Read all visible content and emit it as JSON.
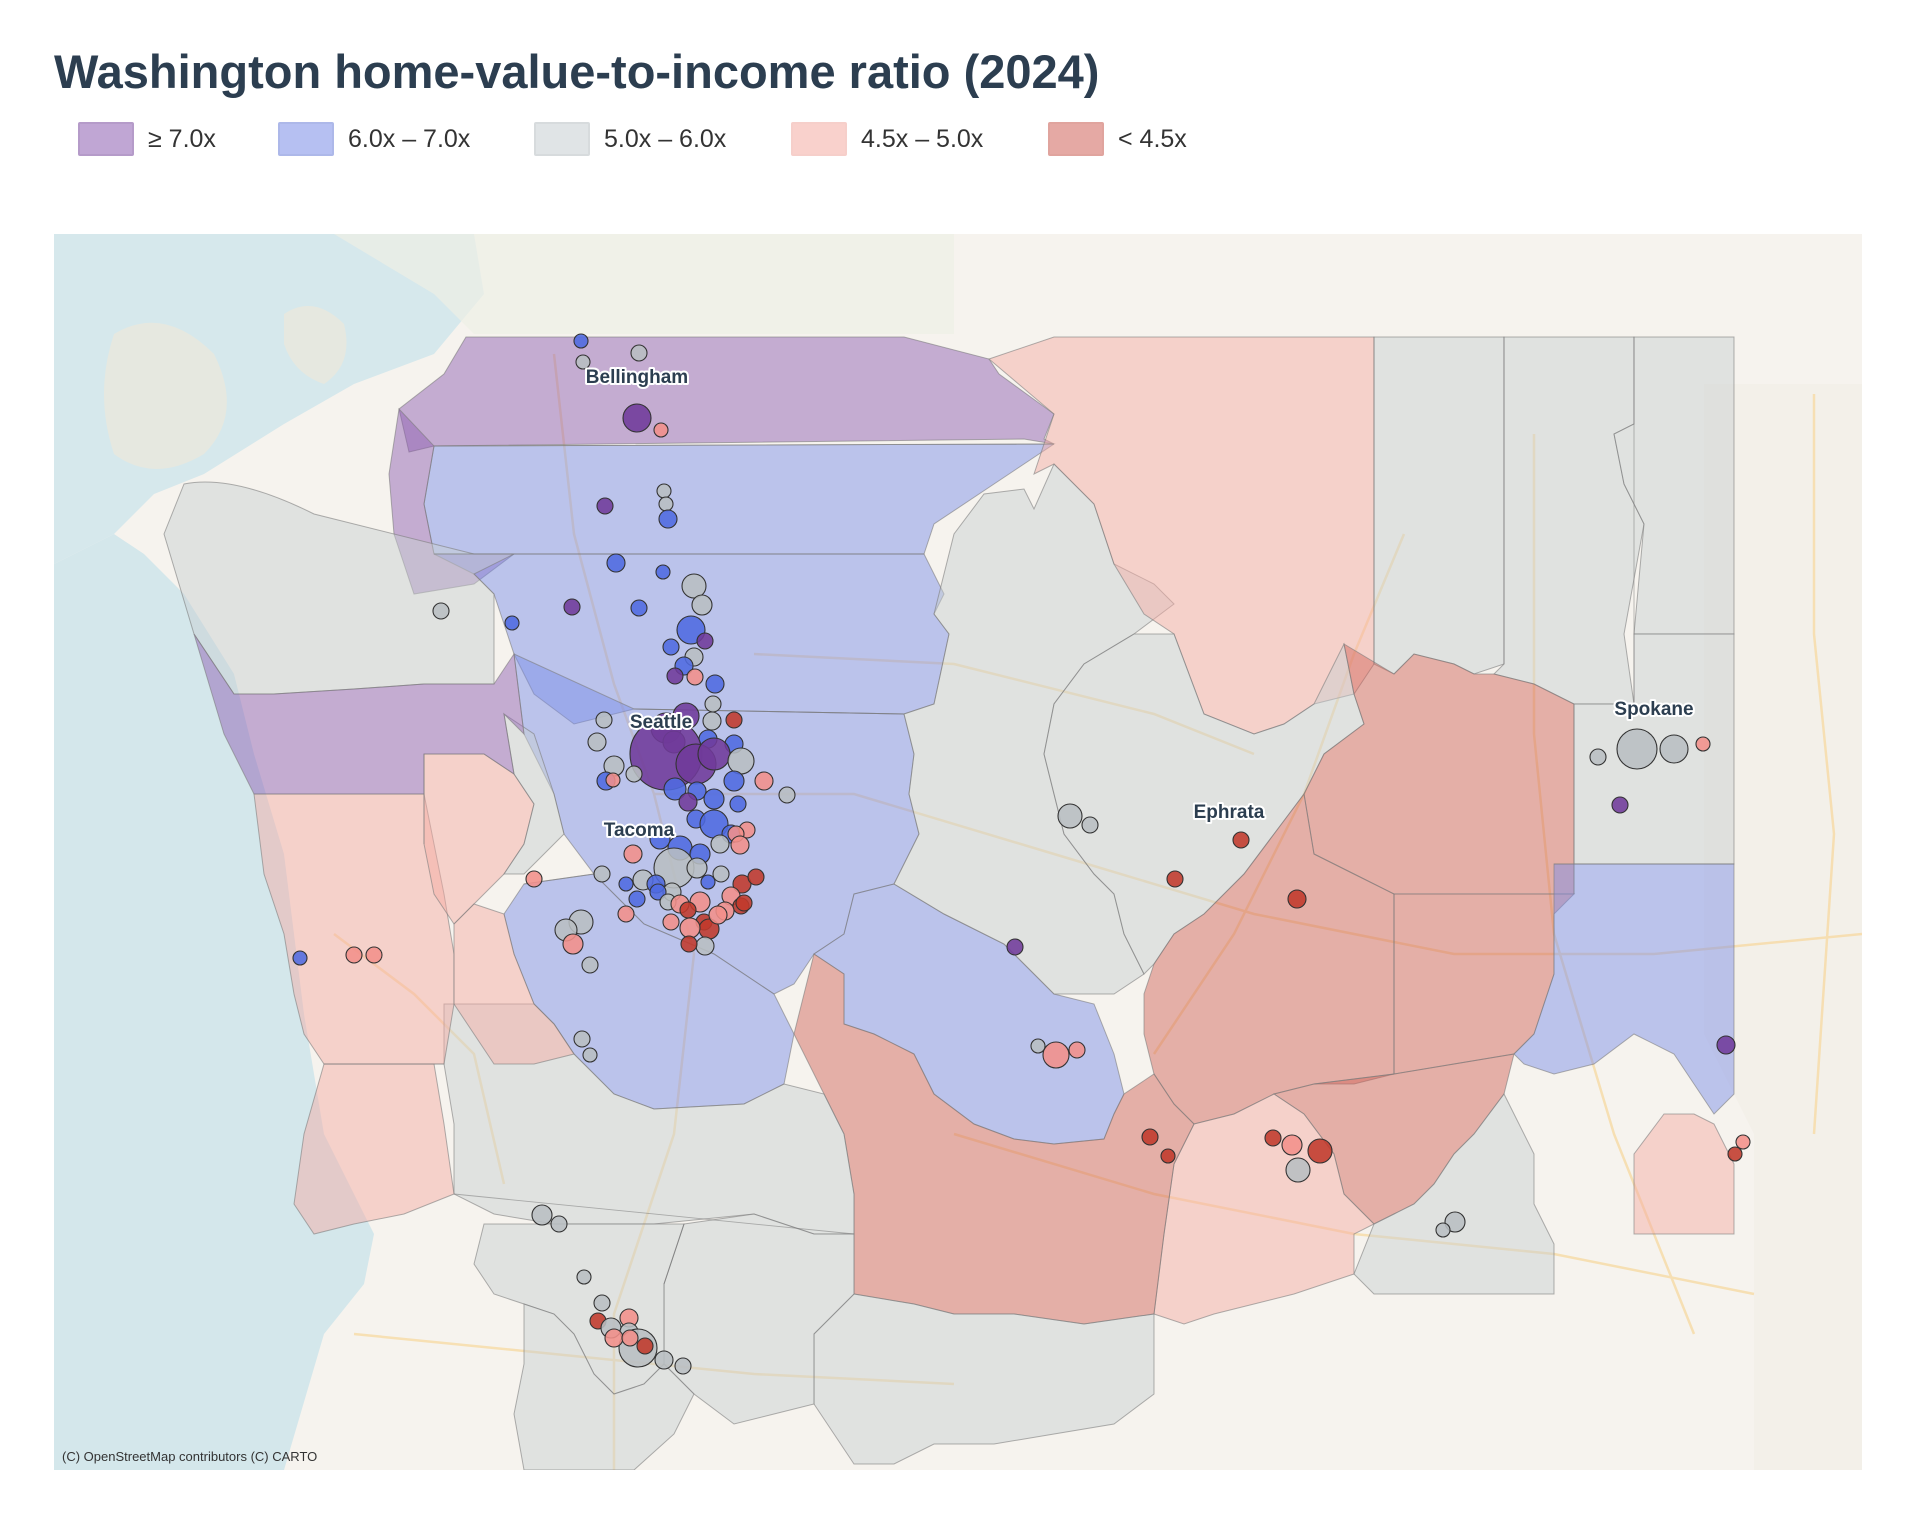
{
  "title": "Washington home-value-to-income ratio (2024)",
  "legend": [
    {
      "label": "≥ 7.0x",
      "fill": "#8e5fb2",
      "stroke": "#7a4a9e"
    },
    {
      "label": "6.0x – 7.0x",
      "fill": "#7b8ee8",
      "stroke": "#6b7fd8"
    },
    {
      "label": "5.0x – 6.0x",
      "fill": "#c8cfd2",
      "stroke": "#b8bfc2"
    },
    {
      "label": "4.5x – 5.0x",
      "fill": "#f5aca3",
      "stroke": "#f0a8a0"
    },
    {
      "label": "< 4.5x",
      "fill": "#d0645a",
      "stroke": "#c85a50"
    }
  ],
  "cities": [
    {
      "label": "Bellingham"
    },
    {
      "label": "Seattle"
    },
    {
      "label": "Tacoma"
    },
    {
      "label": "Ephrata"
    },
    {
      "label": "Spokane"
    }
  ],
  "attribution": "(C) OpenStreetMap contributors (C) CARTO"
}
